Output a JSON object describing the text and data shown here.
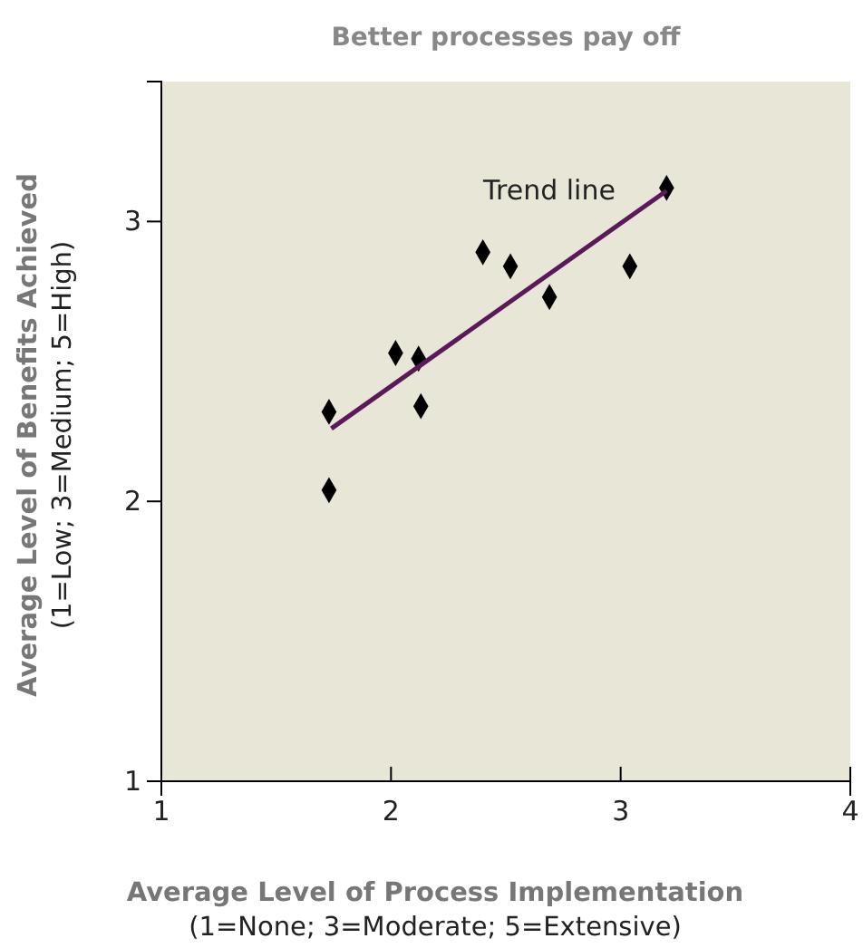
{
  "chart_data": {
    "type": "scatter",
    "title": "Better processes pay off",
    "xlabel": "Average Level of Process Implementation\n(1=None; 3=Moderate; 5=Extensive)",
    "ylabel": "Average Level of Benefits Achieved\n(1=Low; 3=Medium; 5=High)",
    "xlim": [
      1,
      4
    ],
    "xticks": [
      1,
      2,
      3,
      4
    ],
    "ylim": [
      1,
      3.5
    ],
    "yticks": [
      1,
      2,
      3
    ],
    "grid": false,
    "series": [
      {
        "marker": "diamond",
        "color": "#000000",
        "x": [
          1.73,
          1.73,
          2.02,
          2.12,
          2.13,
          2.4,
          2.52,
          2.69,
          3.04,
          3.2
        ],
        "values": [
          2.32,
          2.04,
          2.53,
          2.51,
          2.34,
          2.89,
          2.84,
          2.73,
          2.84,
          3.12
        ]
      },
      {
        "type": "line",
        "color": "#5a1a5a",
        "x": [
          1.74,
          3.2
        ],
        "values": [
          2.26,
          3.11
        ]
      }
    ],
    "annotations": [
      "Trend line"
    ]
  }
}
